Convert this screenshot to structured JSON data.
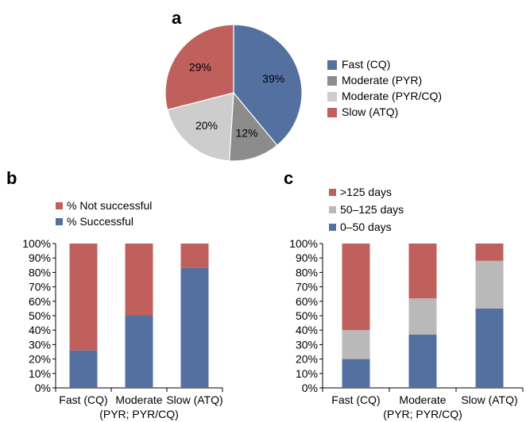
{
  "panel_letters": {
    "a": "a",
    "b": "b",
    "c": "c"
  },
  "chart_data": [
    {
      "panel": "a",
      "type": "pie",
      "title": "",
      "slices": [
        {
          "name": "Fast (CQ)",
          "value": 39,
          "label": "39%",
          "color": "#5470a0"
        },
        {
          "name": "Moderate (PYR)",
          "value": 12,
          "label": "12%",
          "color": "#8c8c8c"
        },
        {
          "name": "Moderate (PYR/CQ)",
          "value": 20,
          "label": "20%",
          "color": "#cdcdcd"
        },
        {
          "name": "Slow (ATQ)",
          "value": 29,
          "label": "29%",
          "color": "#c0605d"
        }
      ],
      "legend": "right"
    },
    {
      "panel": "b",
      "type": "bar",
      "stacked": true,
      "categories": [
        {
          "line1": "Fast (CQ)",
          "line2": ""
        },
        {
          "line1": "Moderate",
          "line2": "(PYR; PYR/CQ)"
        },
        {
          "line1": "Slow (ATQ)",
          "line2": ""
        }
      ],
      "series": [
        {
          "name": "% Successful",
          "values": [
            26,
            50,
            83
          ],
          "color": "#5470a0"
        },
        {
          "name": "% Not successful",
          "values": [
            74,
            50,
            17
          ],
          "color": "#c0605d"
        }
      ],
      "legend_order": [
        "% Not successful",
        "% Successful"
      ],
      "ylim": [
        0,
        100
      ],
      "yticks": [
        "0%",
        "10%",
        "20%",
        "30%",
        "40%",
        "50%",
        "60%",
        "70%",
        "80%",
        "90%",
        "100%"
      ],
      "legend": "top-left",
      "grid": false
    },
    {
      "panel": "c",
      "type": "bar",
      "stacked": true,
      "categories": [
        {
          "line1": "Fast (CQ)",
          "line2": ""
        },
        {
          "line1": "Moderate",
          "line2": "(PYR; PYR/CQ)"
        },
        {
          "line1": "Slow (ATQ)",
          "line2": ""
        }
      ],
      "series": [
        {
          "name": "0–50 days",
          "values": [
            20,
            37,
            55
          ],
          "color": "#5470a0"
        },
        {
          "name": "50–125 days",
          "values": [
            20,
            25,
            33
          ],
          "color": "#b9b9b9"
        },
        {
          "name": ">125 days",
          "values": [
            60,
            38,
            12
          ],
          "color": "#c0605d"
        }
      ],
      "legend_order": [
        ">125 days",
        "50–125 days",
        "0–50 days"
      ],
      "ylim": [
        0,
        100
      ],
      "yticks": [
        "0%",
        "10%",
        "20%",
        "30%",
        "40%",
        "50%",
        "60%",
        "70%",
        "80%",
        "90%",
        "100%"
      ],
      "legend": "top-left",
      "grid": false
    }
  ]
}
